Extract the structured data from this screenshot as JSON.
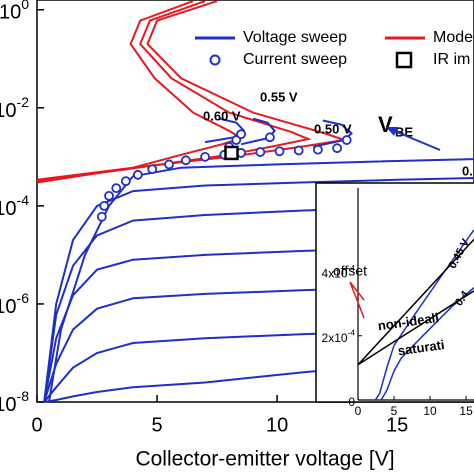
{
  "chart_data": [
    {
      "type": "line",
      "log_y": true,
      "xlabel": "Collector-emitter voltage [V]",
      "xlim": [
        0,
        18.2
      ],
      "xticks": [
        0,
        5,
        10,
        15
      ],
      "ylim": [
        1e-08,
        1.58
      ],
      "yticks": [
        {
          "value": 1,
          "label": "10",
          "exponent": "0"
        },
        {
          "value": 0.01,
          "label": "10",
          "exponent": "-2"
        },
        {
          "value": 0.0001,
          "label": "10",
          "exponent": "-4"
        },
        {
          "value": 1e-06,
          "label": "10",
          "exponent": "-6"
        },
        {
          "value": 1e-08,
          "label": "10",
          "exponent": "-8"
        }
      ],
      "series": [
        {
          "name": "Voltage sweep",
          "color": "#1f2fc8",
          "style": "line",
          "curves": [
            {
              "x": [
                0.5,
                1,
                2,
                3,
                4,
                6,
                10,
                14,
                18.2
              ],
              "values": [
                1e-08,
                3e-07,
                1e-05,
                0.0001,
                0.0004,
                0.0006,
                0.0007,
                0.0008,
                0.0009
              ]
            },
            {
              "x": [
                0.3,
                0.8,
                1.5,
                2.5,
                4,
                7,
                11,
                15,
                18.2
              ],
              "values": [
                1e-08,
                1e-06,
                2e-05,
                0.0001,
                0.0002,
                0.00026,
                0.0003,
                0.00034,
                0.00037
              ]
            },
            {
              "x": [
                0.3,
                0.8,
                1.5,
                2.5,
                4,
                7,
                11,
                15,
                18.2
              ],
              "values": [
                1e-08,
                6e-07,
                6e-06,
                2.5e-05,
                5e-05,
                6.5e-05,
                8e-05,
                9.5e-05,
                0.000105
              ]
            },
            {
              "x": [
                0.3,
                0.8,
                1.5,
                2.5,
                4,
                7,
                11,
                15,
                18.2
              ],
              "values": [
                1e-08,
                2e-07,
                1.5e-06,
                5e-06,
                8e-06,
                1e-05,
                1.2e-05,
                1.4e-05,
                1.5e-05
              ]
            },
            {
              "x": [
                0.3,
                0.8,
                1.5,
                2.5,
                4,
                7,
                11,
                15,
                18.2
              ],
              "values": [
                1e-08,
                6e-08,
                3e-07,
                8e-07,
                1.3e-06,
                1.6e-06,
                1.9e-06,
                2.2e-06,
                2.4e-06
              ]
            },
            {
              "x": [
                0.3,
                0.8,
                1.5,
                2.5,
                4,
                7,
                11,
                15,
                18.2
              ],
              "values": [
                1e-08,
                2e-08,
                5e-08,
                1e-07,
                1.6e-07,
                2e-07,
                2.4e-07,
                2.8e-07,
                3e-07
              ]
            },
            {
              "x": [
                0.3,
                0.8,
                1.5,
                2.5,
                4,
                7,
                11,
                15,
                18.2
              ],
              "values": [
                1e-08,
                1.1e-08,
                1.3e-08,
                1.6e-08,
                2e-08,
                2.5e-08,
                4e-08,
                6e-08,
                7e-08
              ]
            },
            {
              "x": [
                7,
                8.2,
                8.6,
                8.3,
                7.6
              ],
              "values": [
                0.002,
                0.0025,
                0.0035,
                0.005,
                0.006
              ]
            },
            {
              "x": [
                8.5,
                9.6,
                9.9,
                9.6,
                9
              ],
              "values": [
                0.0018,
                0.0024,
                0.0034,
                0.005,
                0.006
              ]
            },
            {
              "x": [
                11.5,
                12.8,
                13.1,
                12.7,
                11.9
              ],
              "values": [
                0.0016,
                0.0022,
                0.003,
                0.0045,
                0.0055
              ]
            }
          ]
        },
        {
          "name": "Mode",
          "color": "#e8191f",
          "style": "line",
          "curves": [
            {
              "x": [
                0,
                4,
                8,
                11,
                12.8,
                12,
                9,
                6,
                4.6,
                5,
                7.5
              ],
              "values": [
                0.00034,
                0.0006,
                0.001,
                0.0016,
                0.0022,
                0.003,
                0.008,
                0.04,
                0.2,
                0.6,
                1.5
              ]
            },
            {
              "x": [
                0,
                4,
                8,
                10,
                11.3,
                10.6,
                8,
                5.6,
                4.3,
                4.7,
                7
              ],
              "values": [
                0.00032,
                0.00058,
                0.0011,
                0.0017,
                0.0023,
                0.0032,
                0.008,
                0.04,
                0.2,
                0.6,
                1.5
              ]
            },
            {
              "x": [
                0,
                4,
                6,
                7.7,
                8.5,
                8,
                6.5,
                4.9,
                3.9,
                4.3,
                6.5
              ],
              "values": [
                0.0003,
                0.0006,
                0.0011,
                0.0018,
                0.0024,
                0.0034,
                0.008,
                0.04,
                0.2,
                0.6,
                1.5
              ]
            }
          ]
        },
        {
          "name": "Current sweep",
          "color": "#1f2fc8",
          "style": "marker",
          "x": [
            2.7,
            2.8,
            3,
            3.3,
            3.7,
            4.2,
            4.8,
            5.5,
            6.2,
            7,
            7.8,
            8.5,
            9.3,
            10.1,
            10.9,
            11.7,
            12.5,
            8,
            8.3,
            8.5,
            9.7,
            12.9
          ],
          "values": [
            6e-05,
            0.0001,
            0.00016,
            0.00023,
            0.00032,
            0.00043,
            0.00056,
            0.0007,
            0.00085,
            0.001,
            0.0011,
            0.0012,
            0.00125,
            0.0013,
            0.00135,
            0.0014,
            0.0015,
            0.0016,
            0.0022,
            0.0029,
            0.0025,
            0.0022
          ]
        },
        {
          "name": "IR im",
          "color": "#000000",
          "style": "square",
          "x": [
            8.1
          ],
          "values": [
            0.0012
          ]
        }
      ],
      "annotations": [
        "0.60 V",
        "0.55 V",
        "0.50 V",
        "V",
        "BE",
        "0.",
        "0."
      ]
    },
    {
      "type": "line",
      "xlim": [
        0,
        16.1
      ],
      "xticks": [
        0,
        5,
        10,
        15
      ],
      "ylim": [
        0,
        0.00066
      ],
      "yticks": [
        {
          "value": 0,
          "label": "0"
        },
        {
          "value": 0.0002,
          "label": "2x10",
          "exponent": "-4"
        },
        {
          "value": 0.0004,
          "label": "4x10",
          "exponent": "-4"
        }
      ],
      "series": [
        {
          "color": "#1f2fc8",
          "x": [
            2.4,
            3,
            4,
            5,
            8,
            12,
            16.1
          ],
          "values": [
            0,
            2e-05,
            0.0001,
            0.00017,
            0.00027,
            0.0004,
            0.00053
          ]
        },
        {
          "color": "#1f2fc8",
          "x": [
            3.2,
            4,
            5,
            6,
            9,
            13,
            16.1
          ],
          "values": [
            0,
            3e-05,
            9e-05,
            0.00013,
            0.0002,
            0.00029,
            0.00035
          ]
        },
        {
          "color": "#000000",
          "x": [
            0,
            16.1
          ],
          "values": [
            0.00011,
            0.0005
          ]
        },
        {
          "color": "#000000",
          "x": [
            0,
            16.1
          ],
          "values": [
            0.00011,
            0.00034
          ]
        }
      ],
      "annotations": [
        "offset",
        "0.45 V",
        "0.4",
        "non-ideali",
        "saturati"
      ]
    }
  ]
}
